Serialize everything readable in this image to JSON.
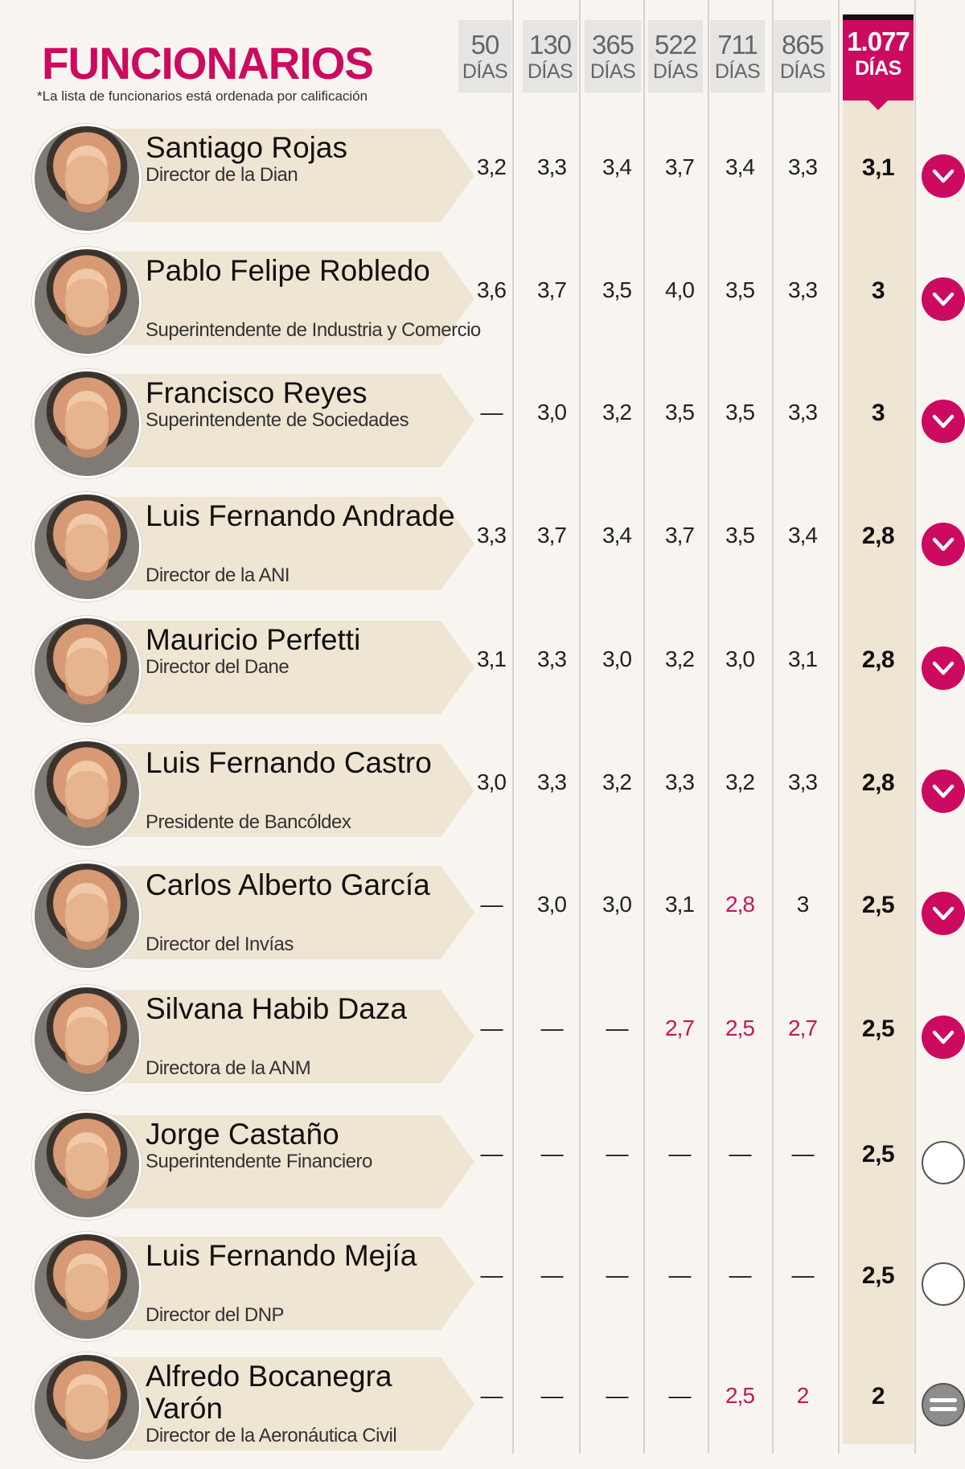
{
  "header": {
    "title": "FUNCIONARIOS",
    "note": "*La lista de funcionarios está ordenada por calificación"
  },
  "columns": [
    {
      "n": "50",
      "d": "DÍAS"
    },
    {
      "n": "130",
      "d": "DÍAS"
    },
    {
      "n": "365",
      "d": "DÍAS"
    },
    {
      "n": "522",
      "d": "DÍAS"
    },
    {
      "n": "711",
      "d": "DÍAS"
    },
    {
      "n": "865",
      "d": "DÍAS"
    },
    {
      "n": "1.077",
      "d": "DÍAS"
    }
  ],
  "colors": {
    "accent": "#cc0a5f",
    "band": "#efe5d3",
    "negative": "#c2185b"
  },
  "rows": [
    {
      "name": "Santiago Rojas",
      "role": "Director de la Dian",
      "values": [
        "3,2",
        "3,3",
        "3,4",
        "3,7",
        "3,4",
        "3,3"
      ],
      "final": "3,1",
      "red": [],
      "trend": "down-icon"
    },
    {
      "name": "Pablo Felipe Robledo",
      "role": "Superintendente de Industria y Comercio",
      "values": [
        "3,6",
        "3,7",
        "3,5",
        "4,0",
        "3,5",
        "3,3"
      ],
      "final": "3",
      "red": [],
      "trend": "down-icon"
    },
    {
      "name": "Francisco Reyes",
      "role": "Superintendente de Sociedades",
      "values": [
        "—",
        "3,0",
        "3,2",
        "3,5",
        "3,5",
        "3,3"
      ],
      "final": "3",
      "red": [],
      "trend": "down-icon"
    },
    {
      "name": "Luis Fernando Andrade",
      "role": "Director de la ANI",
      "values": [
        "3,3",
        "3,7",
        "3,4",
        "3,7",
        "3,5",
        "3,4"
      ],
      "final": "2,8",
      "red": [],
      "trend": "down-icon"
    },
    {
      "name": "Mauricio Perfetti",
      "role": "Director del Dane",
      "values": [
        "3,1",
        "3,3",
        "3,0",
        "3,2",
        "3,0",
        "3,1"
      ],
      "final": "2,8",
      "red": [],
      "trend": "down-icon"
    },
    {
      "name": "Luis Fernando Castro",
      "role": "Presidente de Bancóldex",
      "values": [
        "3,0",
        "3,3",
        "3,2",
        "3,3",
        "3,2",
        "3,3"
      ],
      "final": "2,8",
      "red": [],
      "trend": "down-icon"
    },
    {
      "name": "Carlos Alberto García",
      "role": "Director del Invías",
      "values": [
        "—",
        "3,0",
        "3,0",
        "3,1",
        "2,8",
        "3"
      ],
      "final": "2,5",
      "red": [
        4
      ],
      "trend": "down-icon"
    },
    {
      "name": "Silvana Habib Daza",
      "role": "Directora de la ANM",
      "values": [
        "—",
        "—",
        "—",
        "2,7",
        "2,5",
        "2,7"
      ],
      "final": "2,5",
      "red": [
        3,
        4,
        5
      ],
      "trend": "down-icon"
    },
    {
      "name": "Jorge Castaño",
      "role": "Superintendente Financiero",
      "values": [
        "—",
        "—",
        "—",
        "—",
        "—",
        "—"
      ],
      "final": "2,5",
      "red": [],
      "trend": "new-icon"
    },
    {
      "name": "Luis Fernando Mejía",
      "role": "Director del DNP",
      "values": [
        "—",
        "—",
        "—",
        "—",
        "—",
        "—"
      ],
      "final": "2,5",
      "red": [],
      "trend": "new-icon"
    },
    {
      "name": "Alfredo Bocanegra Varón",
      "role": "Director de la Aeronáutica Civil",
      "values": [
        "—",
        "—",
        "—",
        "—",
        "2,5",
        "2"
      ],
      "final": "2",
      "red": [
        4,
        5
      ],
      "trend": "equal-icon"
    }
  ]
}
